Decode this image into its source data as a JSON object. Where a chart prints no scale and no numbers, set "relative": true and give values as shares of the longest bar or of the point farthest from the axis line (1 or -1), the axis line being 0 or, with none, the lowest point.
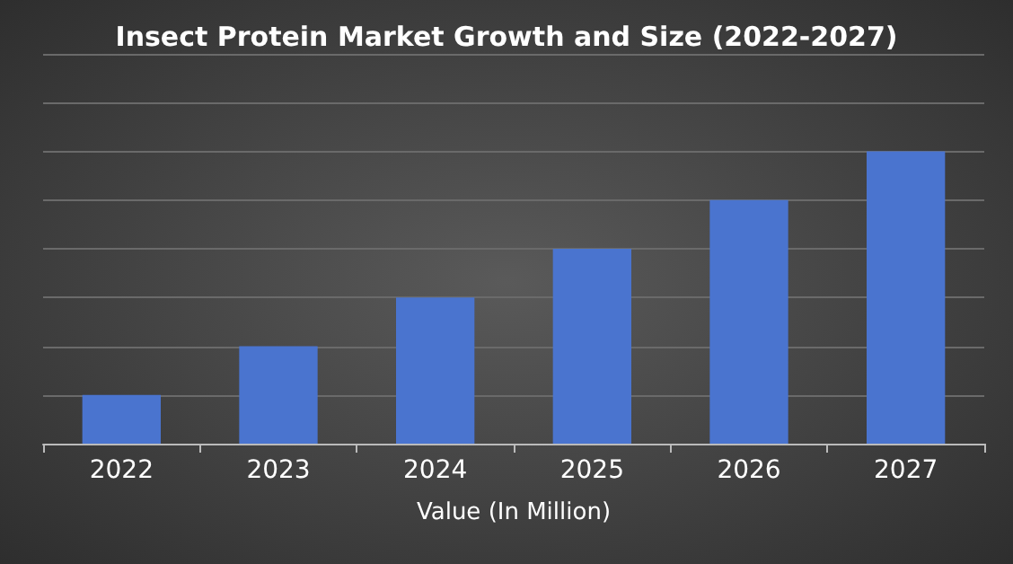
{
  "chart_data": {
    "type": "bar",
    "title": "Insect Protein Market Growth and Size (2022-2027)",
    "xlabel": "Value (In Million)",
    "categories": [
      "2022",
      "2023",
      "2024",
      "2025",
      "2026",
      "2027"
    ],
    "values": [
      0.167,
      0.333,
      0.5,
      0.667,
      0.833,
      1
    ],
    "color": "#4a74cf",
    "relative": true,
    "grid": "y"
  }
}
